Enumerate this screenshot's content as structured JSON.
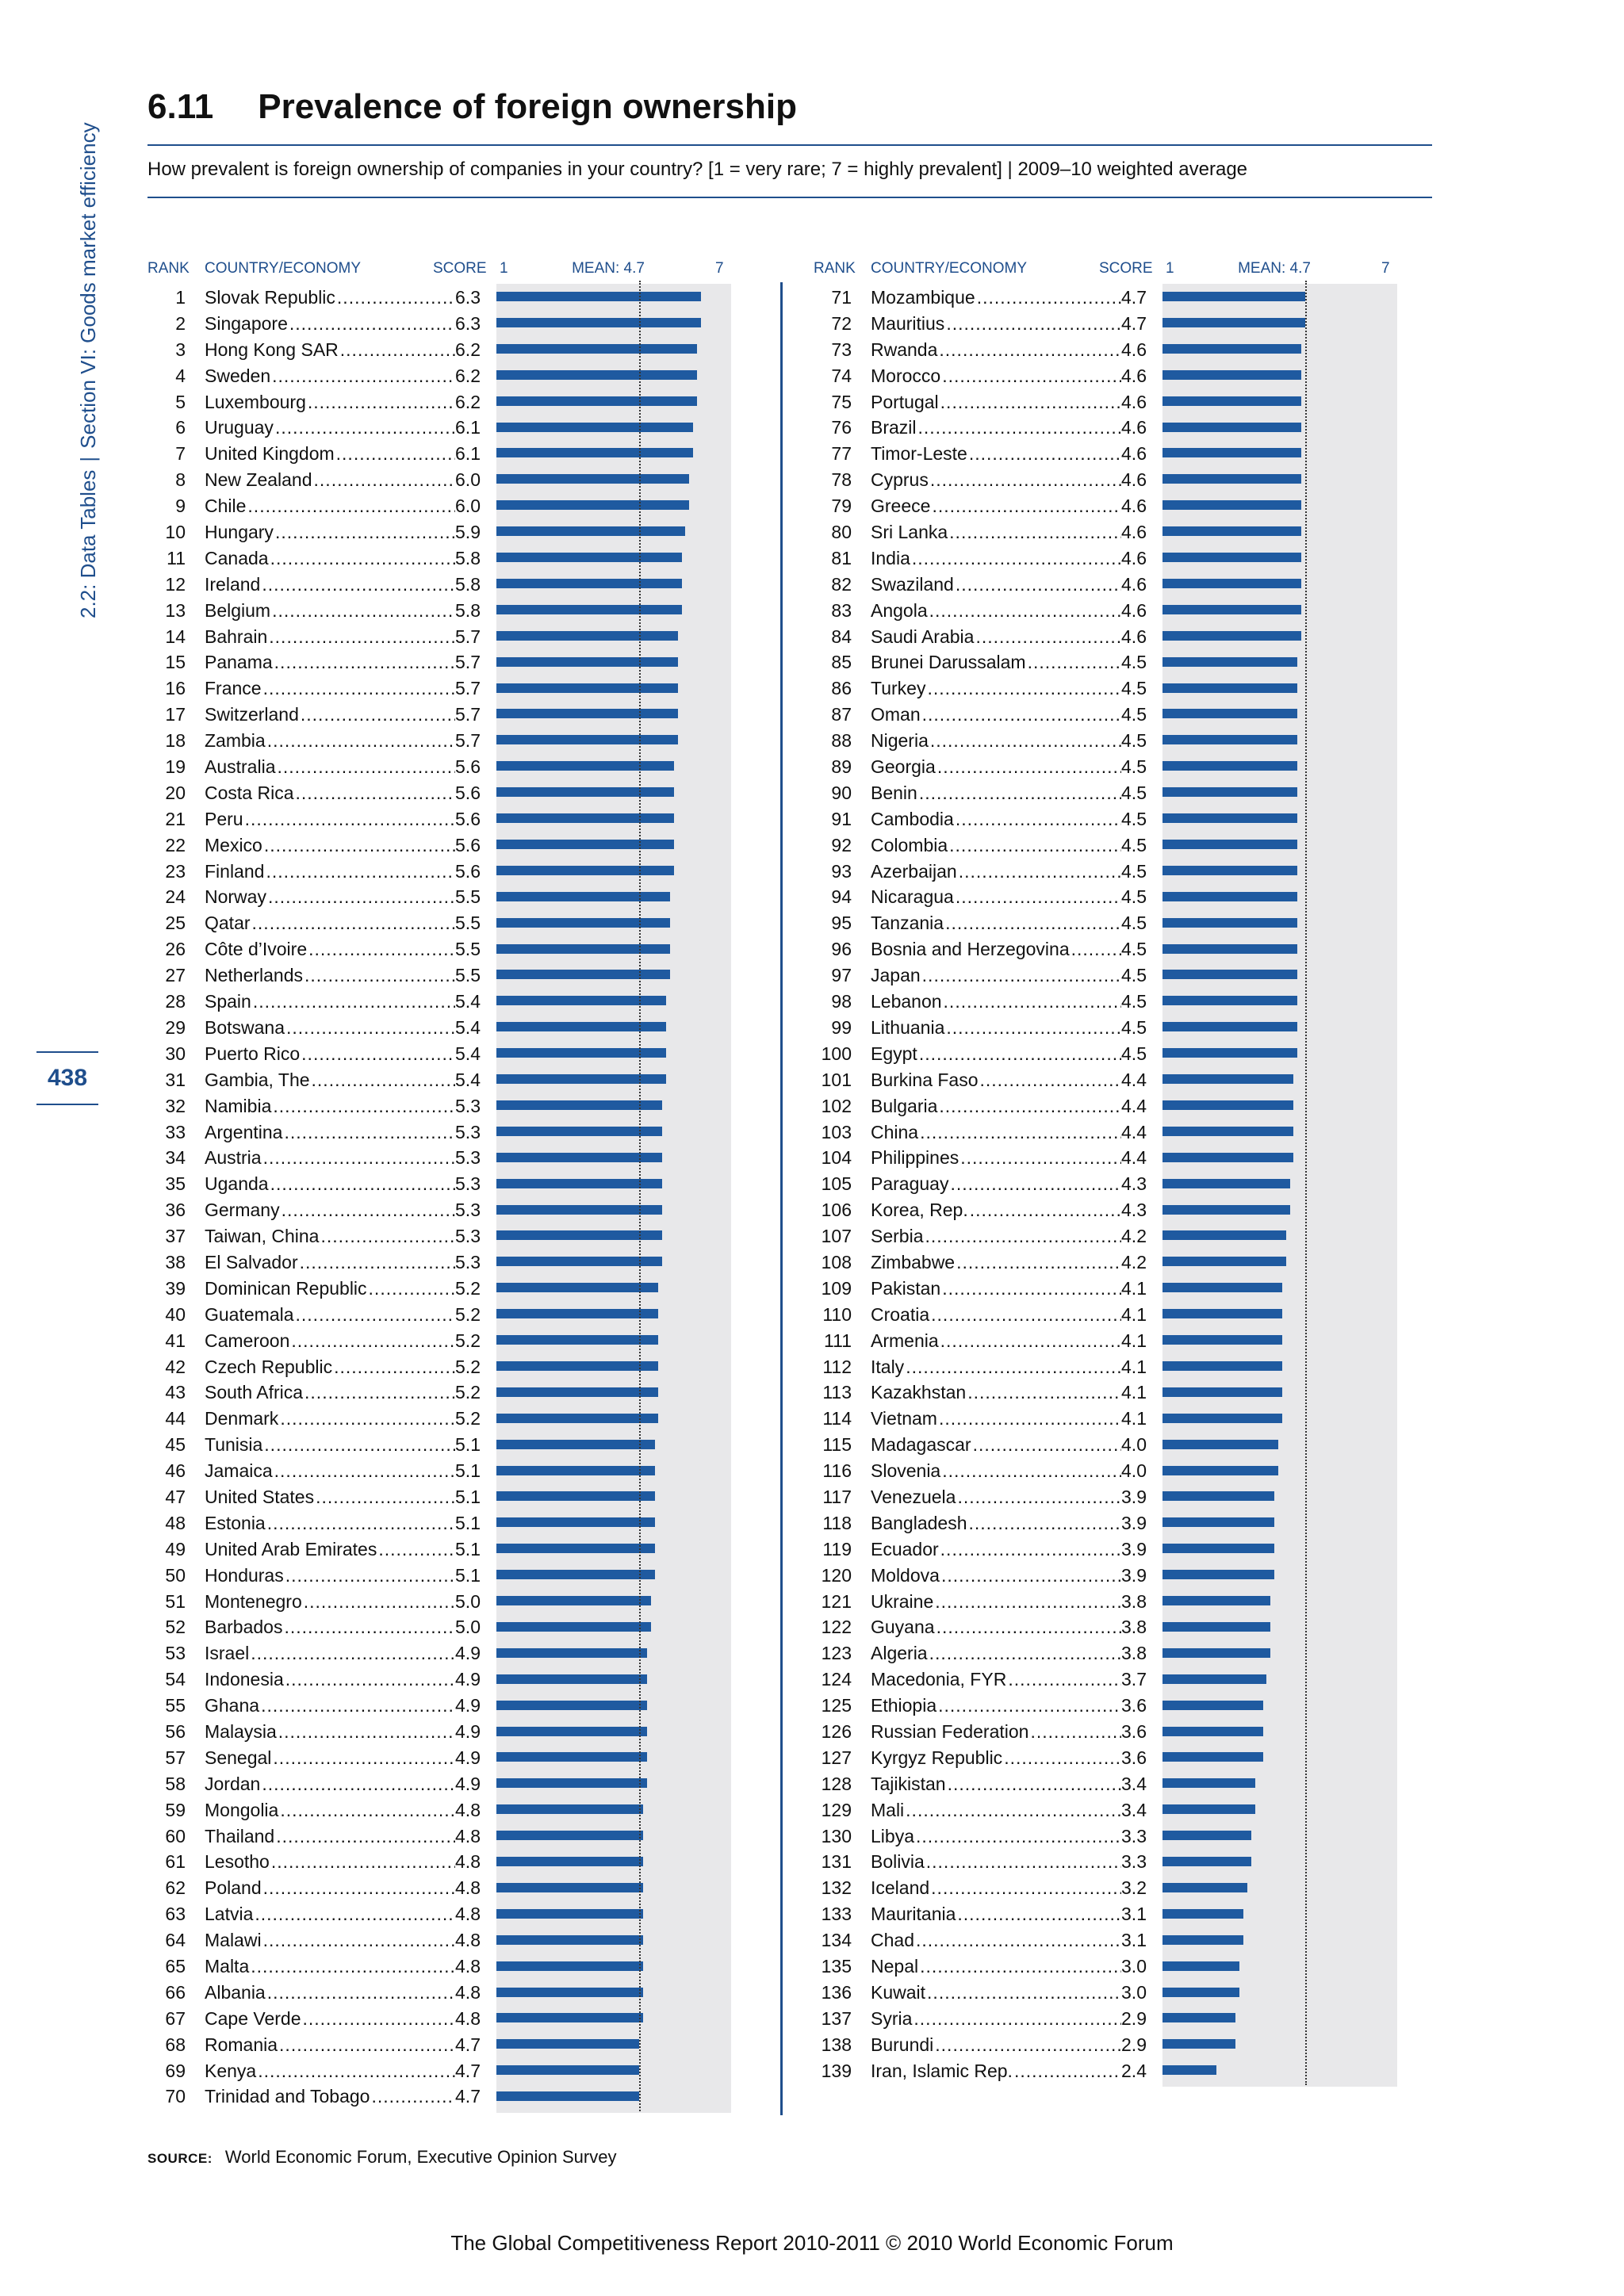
{
  "sidebar": {
    "part1": "2.2: Data Tables",
    "separator": "|",
    "part2": "Section VI: Goods market efficiency"
  },
  "page_number": "438",
  "header": {
    "number": "6.11",
    "title": "Prevalence of foreign ownership",
    "question": "How prevalent is foreign ownership of companies in your country? [1 = very rare; 7 = highly prevalent]  |  2009–10 weighted average"
  },
  "table_headers": {
    "rank": "RANK",
    "country": "COUNTRY/ECONOMY",
    "score": "SCORE",
    "scale_min": "1",
    "mean_label": "MEAN: 4.7",
    "scale_max": "7"
  },
  "chart_data": {
    "type": "bar",
    "orientation": "horizontal",
    "scale_min": 1,
    "scale_max": 7,
    "mean": 4.7,
    "entries": [
      {
        "rank": "1",
        "country": "Slovak Republic",
        "score": 6.3
      },
      {
        "rank": "2",
        "country": "Singapore",
        "score": 6.3
      },
      {
        "rank": "3",
        "country": "Hong Kong SAR",
        "score": 6.2
      },
      {
        "rank": "4",
        "country": "Sweden",
        "score": 6.2
      },
      {
        "rank": "5",
        "country": "Luxembourg",
        "score": 6.2
      },
      {
        "rank": "6",
        "country": "Uruguay",
        "score": 6.1
      },
      {
        "rank": "7",
        "country": "United Kingdom",
        "score": 6.1
      },
      {
        "rank": "8",
        "country": "New Zealand",
        "score": 6.0
      },
      {
        "rank": "9",
        "country": "Chile",
        "score": 6.0
      },
      {
        "rank": "10",
        "country": "Hungary",
        "score": 5.9
      },
      {
        "rank": "11",
        "country": "Canada",
        "score": 5.8
      },
      {
        "rank": "12",
        "country": "Ireland",
        "score": 5.8
      },
      {
        "rank": "13",
        "country": "Belgium",
        "score": 5.8
      },
      {
        "rank": "14",
        "country": "Bahrain",
        "score": 5.7
      },
      {
        "rank": "15",
        "country": "Panama",
        "score": 5.7
      },
      {
        "rank": "16",
        "country": "France",
        "score": 5.7
      },
      {
        "rank": "17",
        "country": "Switzerland",
        "score": 5.7
      },
      {
        "rank": "18",
        "country": "Zambia",
        "score": 5.7
      },
      {
        "rank": "19",
        "country": "Australia",
        "score": 5.6
      },
      {
        "rank": "20",
        "country": "Costa Rica",
        "score": 5.6
      },
      {
        "rank": "21",
        "country": "Peru",
        "score": 5.6
      },
      {
        "rank": "22",
        "country": "Mexico",
        "score": 5.6
      },
      {
        "rank": "23",
        "country": "Finland",
        "score": 5.6
      },
      {
        "rank": "24",
        "country": "Norway",
        "score": 5.5
      },
      {
        "rank": "25",
        "country": "Qatar",
        "score": 5.5
      },
      {
        "rank": "26",
        "country": "Côte d’Ivoire",
        "score": 5.5
      },
      {
        "rank": "27",
        "country": "Netherlands",
        "score": 5.5
      },
      {
        "rank": "28",
        "country": "Spain",
        "score": 5.4
      },
      {
        "rank": "29",
        "country": "Botswana",
        "score": 5.4
      },
      {
        "rank": "30",
        "country": "Puerto Rico",
        "score": 5.4
      },
      {
        "rank": "31",
        "country": "Gambia, The",
        "score": 5.4
      },
      {
        "rank": "32",
        "country": "Namibia",
        "score": 5.3
      },
      {
        "rank": "33",
        "country": "Argentina",
        "score": 5.3
      },
      {
        "rank": "34",
        "country": "Austria",
        "score": 5.3
      },
      {
        "rank": "35",
        "country": "Uganda",
        "score": 5.3
      },
      {
        "rank": "36",
        "country": "Germany",
        "score": 5.3
      },
      {
        "rank": "37",
        "country": "Taiwan, China",
        "score": 5.3
      },
      {
        "rank": "38",
        "country": "El Salvador",
        "score": 5.3
      },
      {
        "rank": "39",
        "country": "Dominican Republic",
        "score": 5.2
      },
      {
        "rank": "40",
        "country": "Guatemala",
        "score": 5.2
      },
      {
        "rank": "41",
        "country": "Cameroon",
        "score": 5.2
      },
      {
        "rank": "42",
        "country": "Czech Republic",
        "score": 5.2
      },
      {
        "rank": "43",
        "country": "South Africa",
        "score": 5.2
      },
      {
        "rank": "44",
        "country": "Denmark",
        "score": 5.2
      },
      {
        "rank": "45",
        "country": "Tunisia",
        "score": 5.1
      },
      {
        "rank": "46",
        "country": "Jamaica",
        "score": 5.1
      },
      {
        "rank": "47",
        "country": "United States",
        "score": 5.1
      },
      {
        "rank": "48",
        "country": "Estonia",
        "score": 5.1
      },
      {
        "rank": "49",
        "country": "United Arab Emirates",
        "score": 5.1
      },
      {
        "rank": "50",
        "country": "Honduras",
        "score": 5.1
      },
      {
        "rank": "51",
        "country": "Montenegro",
        "score": 5.0
      },
      {
        "rank": "52",
        "country": "Barbados",
        "score": 5.0
      },
      {
        "rank": "53",
        "country": "Israel",
        "score": 4.9
      },
      {
        "rank": "54",
        "country": "Indonesia",
        "score": 4.9
      },
      {
        "rank": "55",
        "country": "Ghana",
        "score": 4.9
      },
      {
        "rank": "56",
        "country": "Malaysia",
        "score": 4.9
      },
      {
        "rank": "57",
        "country": "Senegal",
        "score": 4.9
      },
      {
        "rank": "58",
        "country": "Jordan",
        "score": 4.9
      },
      {
        "rank": "59",
        "country": "Mongolia",
        "score": 4.8
      },
      {
        "rank": "60",
        "country": "Thailand",
        "score": 4.8
      },
      {
        "rank": "61",
        "country": "Lesotho",
        "score": 4.8
      },
      {
        "rank": "62",
        "country": "Poland",
        "score": 4.8
      },
      {
        "rank": "63",
        "country": "Latvia",
        "score": 4.8
      },
      {
        "rank": "64",
        "country": "Malawi",
        "score": 4.8
      },
      {
        "rank": "65",
        "country": "Malta",
        "score": 4.8
      },
      {
        "rank": "66",
        "country": "Albania",
        "score": 4.8
      },
      {
        "rank": "67",
        "country": "Cape Verde",
        "score": 4.8
      },
      {
        "rank": "68",
        "country": "Romania",
        "score": 4.7
      },
      {
        "rank": "69",
        "country": "Kenya",
        "score": 4.7
      },
      {
        "rank": "70",
        "country": "Trinidad and Tobago",
        "score": 4.7
      },
      {
        "rank": "71",
        "country": "Mozambique",
        "score": 4.7
      },
      {
        "rank": "72",
        "country": "Mauritius",
        "score": 4.7
      },
      {
        "rank": "73",
        "country": "Rwanda",
        "score": 4.6
      },
      {
        "rank": "74",
        "country": "Morocco",
        "score": 4.6
      },
      {
        "rank": "75",
        "country": "Portugal",
        "score": 4.6
      },
      {
        "rank": "76",
        "country": "Brazil",
        "score": 4.6
      },
      {
        "rank": "77",
        "country": "Timor-Leste",
        "score": 4.6
      },
      {
        "rank": "78",
        "country": "Cyprus",
        "score": 4.6
      },
      {
        "rank": "79",
        "country": "Greece",
        "score": 4.6
      },
      {
        "rank": "80",
        "country": "Sri Lanka",
        "score": 4.6
      },
      {
        "rank": "81",
        "country": "India",
        "score": 4.6
      },
      {
        "rank": "82",
        "country": "Swaziland",
        "score": 4.6
      },
      {
        "rank": "83",
        "country": "Angola",
        "score": 4.6
      },
      {
        "rank": "84",
        "country": "Saudi Arabia",
        "score": 4.6
      },
      {
        "rank": "85",
        "country": "Brunei Darussalam",
        "score": 4.5
      },
      {
        "rank": "86",
        "country": "Turkey",
        "score": 4.5
      },
      {
        "rank": "87",
        "country": "Oman",
        "score": 4.5
      },
      {
        "rank": "88",
        "country": "Nigeria",
        "score": 4.5
      },
      {
        "rank": "89",
        "country": "Georgia",
        "score": 4.5
      },
      {
        "rank": "90",
        "country": "Benin",
        "score": 4.5
      },
      {
        "rank": "91",
        "country": "Cambodia",
        "score": 4.5
      },
      {
        "rank": "92",
        "country": "Colombia",
        "score": 4.5
      },
      {
        "rank": "93",
        "country": "Azerbaijan",
        "score": 4.5
      },
      {
        "rank": "94",
        "country": "Nicaragua",
        "score": 4.5
      },
      {
        "rank": "95",
        "country": "Tanzania",
        "score": 4.5
      },
      {
        "rank": "96",
        "country": "Bosnia and Herzegovina",
        "score": 4.5
      },
      {
        "rank": "97",
        "country": "Japan",
        "score": 4.5
      },
      {
        "rank": "98",
        "country": "Lebanon",
        "score": 4.5
      },
      {
        "rank": "99",
        "country": "Lithuania",
        "score": 4.5
      },
      {
        "rank": "100",
        "country": "Egypt",
        "score": 4.5
      },
      {
        "rank": "101",
        "country": "Burkina Faso",
        "score": 4.4
      },
      {
        "rank": "102",
        "country": "Bulgaria",
        "score": 4.4
      },
      {
        "rank": "103",
        "country": "China",
        "score": 4.4
      },
      {
        "rank": "104",
        "country": "Philippines",
        "score": 4.4
      },
      {
        "rank": "105",
        "country": "Paraguay",
        "score": 4.3
      },
      {
        "rank": "106",
        "country": "Korea, Rep.",
        "score": 4.3
      },
      {
        "rank": "107",
        "country": "Serbia",
        "score": 4.2
      },
      {
        "rank": "108",
        "country": "Zimbabwe",
        "score": 4.2
      },
      {
        "rank": "109",
        "country": "Pakistan",
        "score": 4.1
      },
      {
        "rank": "110",
        "country": "Croatia",
        "score": 4.1
      },
      {
        "rank": "111",
        "country": "Armenia",
        "score": 4.1
      },
      {
        "rank": "112",
        "country": "Italy",
        "score": 4.1
      },
      {
        "rank": "113",
        "country": "Kazakhstan",
        "score": 4.1
      },
      {
        "rank": "114",
        "country": "Vietnam",
        "score": 4.1
      },
      {
        "rank": "115",
        "country": "Madagascar",
        "score": 4.0
      },
      {
        "rank": "116",
        "country": "Slovenia",
        "score": 4.0
      },
      {
        "rank": "117",
        "country": "Venezuela",
        "score": 3.9
      },
      {
        "rank": "118",
        "country": "Bangladesh",
        "score": 3.9
      },
      {
        "rank": "119",
        "country": "Ecuador",
        "score": 3.9
      },
      {
        "rank": "120",
        "country": "Moldova",
        "score": 3.9
      },
      {
        "rank": "121",
        "country": "Ukraine",
        "score": 3.8
      },
      {
        "rank": "122",
        "country": "Guyana",
        "score": 3.8
      },
      {
        "rank": "123",
        "country": "Algeria",
        "score": 3.8
      },
      {
        "rank": "124",
        "country": "Macedonia, FYR",
        "score": 3.7
      },
      {
        "rank": "125",
        "country": "Ethiopia",
        "score": 3.6
      },
      {
        "rank": "126",
        "country": "Russian Federation",
        "score": 3.6
      },
      {
        "rank": "127",
        "country": "Kyrgyz Republic",
        "score": 3.6
      },
      {
        "rank": "128",
        "country": "Tajikistan",
        "score": 3.4
      },
      {
        "rank": "129",
        "country": "Mali",
        "score": 3.4
      },
      {
        "rank": "130",
        "country": "Libya",
        "score": 3.3
      },
      {
        "rank": "131",
        "country": "Bolivia",
        "score": 3.3
      },
      {
        "rank": "132",
        "country": "Iceland",
        "score": 3.2
      },
      {
        "rank": "133",
        "country": "Mauritania",
        "score": 3.1
      },
      {
        "rank": "134",
        "country": "Chad",
        "score": 3.1
      },
      {
        "rank": "135",
        "country": "Nepal",
        "score": 3.0
      },
      {
        "rank": "136",
        "country": "Kuwait",
        "score": 3.0
      },
      {
        "rank": "137",
        "country": "Syria",
        "score": 2.9
      },
      {
        "rank": "138",
        "country": "Burundi",
        "score": 2.9
      },
      {
        "rank": "139",
        "country": "Iran, Islamic Rep.",
        "score": 2.4
      }
    ]
  },
  "colors": {
    "accent": "#1f4e8c",
    "bar": "#1f5aa0",
    "chart_background": "#e8e8ea",
    "mean_line": "#333333"
  },
  "source": {
    "label": "SOURCE:",
    "text": "World Economic Forum, Executive Opinion Survey"
  },
  "footer": "The Global Competitiveness Report 2010-2011 © 2010 World Economic Forum"
}
